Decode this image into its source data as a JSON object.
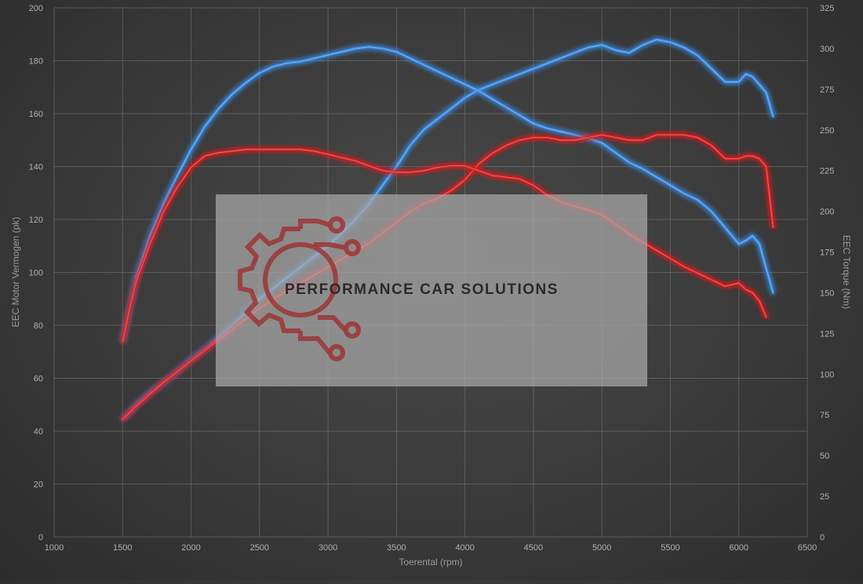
{
  "chart_data": {
    "type": "line",
    "xlabel": "Toerental (rpm)",
    "ylabel_left": "EEC Motor Vermogen (pk)",
    "ylabel_right": "EEC Torque (Nm)",
    "xlim": [
      1000,
      6500
    ],
    "ylim_left": [
      0,
      200
    ],
    "ylim_right": [
      0,
      325
    ],
    "x_ticks": [
      "1000",
      "1500",
      "2000",
      "2500",
      "3000",
      "3500",
      "4000",
      "4500",
      "5000",
      "5500",
      "6000",
      "6500"
    ],
    "y_left_ticks": [
      "0",
      "20",
      "40",
      "60",
      "80",
      "100",
      "120",
      "140",
      "160",
      "180",
      "200"
    ],
    "y_right_ticks": [
      "0",
      "25",
      "50",
      "75",
      "100",
      "125",
      "150",
      "175",
      "200",
      "225",
      "250",
      "275",
      "300",
      "325"
    ],
    "grid": true,
    "legend": "none",
    "watermark_text": "PERFORMANCE CAR SOLUTIONS",
    "colors": {
      "tuned": "#3d8fe8",
      "stock": "#e02424",
      "watermark_box": "#a0a0a0",
      "watermark_logo": "#9b3a3a"
    },
    "series": [
      {
        "axis": "left",
        "color": "tuned",
        "x": [
          1500,
          1550,
          1600,
          1700,
          1800,
          1900,
          2000,
          2100,
          2200,
          2300,
          2400,
          2500,
          2600,
          2700,
          2800,
          2900,
          3000,
          3100,
          3200,
          3300,
          3400,
          3500,
          3600,
          3700,
          3800,
          3900,
          4000,
          4100,
          4200,
          4300,
          4400,
          4500,
          4600,
          4700,
          4800,
          4900,
          5000,
          5100,
          5200,
          5300,
          5400,
          5500,
          5600,
          5700,
          5800,
          5900,
          6000,
          6050,
          6100,
          6150,
          6200,
          6250
        ],
        "y": [
          44.5,
          47,
          50,
          54.5,
          58.5,
          62.5,
          67,
          71,
          75.5,
          80,
          85,
          90,
          94,
          98,
          102,
          106,
          110,
          115,
          120,
          126,
          133,
          140,
          148,
          154,
          158,
          162,
          166,
          169,
          171,
          173,
          175,
          177,
          179,
          181,
          183,
          185,
          186,
          184,
          183,
          186,
          188,
          187,
          185,
          182,
          177,
          172,
          172,
          175,
          174,
          171,
          168,
          159
        ]
      },
      {
        "axis": "right",
        "color": "tuned",
        "x": [
          1500,
          1550,
          1600,
          1700,
          1800,
          1900,
          2000,
          2100,
          2200,
          2300,
          2400,
          2500,
          2600,
          2700,
          2800,
          2900,
          3000,
          3100,
          3200,
          3300,
          3400,
          3500,
          3600,
          3700,
          3800,
          3900,
          4000,
          4100,
          4200,
          4300,
          4400,
          4500,
          4600,
          4700,
          4800,
          4900,
          5000,
          5100,
          5200,
          5300,
          5400,
          5500,
          5600,
          5700,
          5800,
          5900,
          6000,
          6050,
          6100,
          6150,
          6200,
          6250
        ],
        "y": [
          120,
          140,
          160,
          185,
          205,
          222,
          238,
          252,
          263,
          272,
          279,
          285,
          289,
          291,
          292,
          294,
          296,
          298,
          300,
          301,
          300,
          298,
          294,
          290,
          286,
          282,
          278,
          274,
          269,
          264,
          259,
          254,
          251,
          249,
          247,
          245,
          242,
          236,
          230,
          226,
          221,
          216,
          211,
          207,
          200,
          190,
          180,
          182,
          185,
          180,
          165,
          150
        ]
      },
      {
        "axis": "left",
        "color": "stock",
        "x": [
          1500,
          1550,
          1600,
          1700,
          1800,
          1900,
          2000,
          2100,
          2200,
          2300,
          2400,
          2500,
          2600,
          2700,
          2800,
          2900,
          3000,
          3100,
          3200,
          3300,
          3400,
          3500,
          3600,
          3700,
          3800,
          3900,
          4000,
          4100,
          4200,
          4300,
          4400,
          4500,
          4600,
          4700,
          4800,
          4900,
          5000,
          5100,
          5200,
          5300,
          5400,
          5500,
          5600,
          5700,
          5800,
          5900,
          6000,
          6050,
          6100,
          6150,
          6200,
          6250
        ],
        "y": [
          44.5,
          47,
          49.5,
          54,
          58.5,
          62.5,
          66.5,
          70.5,
          74.5,
          78.5,
          82.5,
          86.5,
          90,
          93,
          96,
          99,
          102,
          105,
          108,
          111,
          115,
          119,
          123,
          126,
          128,
          131,
          135,
          141,
          145,
          148,
          150,
          151,
          151,
          150,
          150,
          151,
          152,
          151,
          150,
          150,
          152,
          152,
          152,
          151,
          148,
          143,
          143,
          144,
          144,
          143,
          140,
          117
        ]
      },
      {
        "axis": "right",
        "color": "stock",
        "x": [
          1500,
          1550,
          1600,
          1700,
          1800,
          1900,
          2000,
          2100,
          2200,
          2300,
          2400,
          2500,
          2600,
          2700,
          2800,
          2900,
          3000,
          3100,
          3200,
          3300,
          3400,
          3500,
          3600,
          3700,
          3800,
          3900,
          4000,
          4100,
          4200,
          4300,
          4400,
          4500,
          4600,
          4700,
          4800,
          4900,
          5000,
          5100,
          5200,
          5300,
          5400,
          5500,
          5600,
          5700,
          5800,
          5900,
          6000,
          6050,
          6100,
          6150,
          6200
        ],
        "y": [
          120,
          140,
          157,
          180,
          200,
          215,
          227,
          234,
          236,
          237,
          238,
          238,
          238,
          238,
          238,
          237,
          235,
          233,
          231,
          228,
          225,
          224,
          224,
          225,
          227,
          228,
          228,
          225,
          222,
          221,
          220,
          216,
          210,
          206,
          203,
          201,
          198,
          192,
          186,
          181,
          176,
          171,
          166,
          162,
          158,
          154,
          156,
          152,
          150,
          145,
          135
        ]
      }
    ]
  }
}
